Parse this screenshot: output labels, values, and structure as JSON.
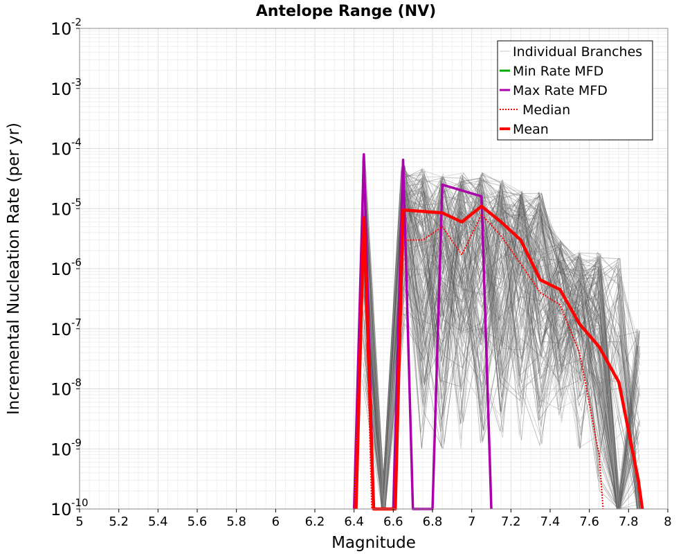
{
  "chart_data": {
    "type": "line",
    "title": "Antelope Range (NV)",
    "xlabel": "Magnitude",
    "ylabel": "Incremental Nucleation Rate (per yr)",
    "xlim": [
      5,
      8
    ],
    "ylim": [
      1e-10,
      0.01
    ],
    "yscale": "log",
    "grid": true,
    "legend_placement": "top-right",
    "x_ticks": [
      "5",
      "5.2",
      "5.4",
      "5.6",
      "5.8",
      "6",
      "6.2",
      "6.4",
      "6.6",
      "6.8",
      "7",
      "7.2",
      "7.4",
      "7.6",
      "7.8",
      "8"
    ],
    "y_ticks": [
      {
        "base": "10",
        "exp": "-10",
        "value": 1e-10
      },
      {
        "base": "10",
        "exp": "-9",
        "value": 1e-09
      },
      {
        "base": "10",
        "exp": "-8",
        "value": 1e-08
      },
      {
        "base": "10",
        "exp": "-7",
        "value": 1e-07
      },
      {
        "base": "10",
        "exp": "-6",
        "value": 1e-06
      },
      {
        "base": "10",
        "exp": "-5",
        "value": 1e-05
      },
      {
        "base": "10",
        "exp": "-4",
        "value": 0.0001
      },
      {
        "base": "10",
        "exp": "-3",
        "value": 0.001
      },
      {
        "base": "10",
        "exp": "-2",
        "value": 0.01
      }
    ],
    "series": [
      {
        "name": "Individual Branches",
        "color": "#555555",
        "style": "thin",
        "x": [
          6.45,
          6.55,
          6.65,
          6.75,
          6.85,
          6.95,
          7.05,
          7.15,
          7.25,
          7.35,
          7.45,
          7.55,
          7.65,
          7.75,
          7.85
        ],
        "y_low": [
          1e-08,
          1e-10,
          1e-07,
          1e-09,
          1e-09,
          1e-09,
          1e-09,
          1e-09,
          1e-09,
          1e-09,
          1e-09,
          1e-09,
          1e-10,
          1e-10,
          1e-10
        ],
        "y_high": [
          8e-05,
          1e-10,
          6e-05,
          5e-05,
          4e-05,
          4e-05,
          4e-05,
          3e-05,
          2e-05,
          2e-05,
          3e-06,
          2e-06,
          2e-06,
          1.5e-06,
          1e-07
        ]
      },
      {
        "name": "Min Rate MFD",
        "color": "#00aa00",
        "x": [],
        "y": []
      },
      {
        "name": "Max Rate MFD",
        "color": "#aa00aa",
        "x": [
          6.4,
          6.45,
          6.5,
          6.6,
          6.65,
          6.7,
          6.8,
          6.85,
          7.05,
          7.1
        ],
        "y": [
          1e-10,
          8e-05,
          1e-10,
          1e-10,
          6.5e-05,
          1e-10,
          1e-10,
          2.5e-05,
          1.6e-05,
          1e-10
        ]
      },
      {
        "name": "Median",
        "color": "#ff0000",
        "x": [
          6.4,
          6.45,
          6.49,
          6.61,
          6.65,
          6.75,
          6.85,
          6.95,
          7.05,
          7.15,
          7.25,
          7.35,
          7.45,
          7.55,
          7.65,
          7.67
        ],
        "y": [
          1e-10,
          6.5e-06,
          1e-10,
          1e-10,
          3e-06,
          3e-06,
          5e-06,
          1.7e-06,
          8e-06,
          3.5e-06,
          1.2e-06,
          4e-07,
          2.5e-07,
          4e-08,
          8e-10,
          1e-10
        ]
      },
      {
        "name": "Mean",
        "color": "#ff0000",
        "x": [
          6.41,
          6.45,
          6.5,
          6.61,
          6.65,
          6.75,
          6.85,
          6.95,
          7.05,
          7.15,
          7.25,
          7.35,
          7.45,
          7.55,
          7.65,
          7.75,
          7.85,
          7.87
        ],
        "y": [
          1e-10,
          7e-06,
          1e-10,
          1e-10,
          9.5e-06,
          9e-06,
          8.5e-06,
          6e-06,
          1.1e-05,
          6e-06,
          3e-06,
          6.5e-07,
          4.5e-07,
          1.2e-07,
          5e-08,
          1.3e-08,
          3e-10,
          1e-10
        ]
      }
    ]
  }
}
